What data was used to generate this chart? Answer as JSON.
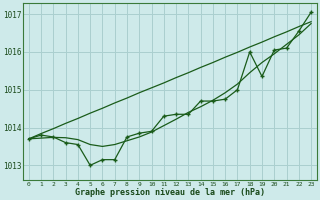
{
  "title": "Graphe pression niveau de la mer (hPa)",
  "background_color": "#ceeaea",
  "grid_color": "#aacfcf",
  "line_color": "#1a5c1a",
  "xlim": [
    -0.5,
    23.5
  ],
  "ylim": [
    1012.6,
    1017.3
  ],
  "yticks": [
    1013,
    1014,
    1015,
    1016,
    1017
  ],
  "xticks": [
    0,
    1,
    2,
    3,
    4,
    5,
    6,
    7,
    8,
    9,
    10,
    11,
    12,
    13,
    14,
    15,
    16,
    17,
    18,
    19,
    20,
    21,
    22,
    23
  ],
  "hours": [
    0,
    1,
    2,
    3,
    4,
    5,
    6,
    7,
    8,
    9,
    10,
    11,
    12,
    13,
    14,
    15,
    16,
    17,
    18,
    19,
    20,
    21,
    22,
    23
  ],
  "pressure_main": [
    1013.7,
    1013.8,
    1013.75,
    1013.6,
    1013.55,
    1013.0,
    1013.15,
    1013.15,
    1013.75,
    1013.85,
    1013.9,
    1014.3,
    1014.35,
    1014.35,
    1014.7,
    1014.7,
    1014.75,
    1015.0,
    1016.0,
    1015.35,
    1016.05,
    1016.1,
    1016.55,
    1017.05
  ],
  "pressure_straight": [
    1013.7,
    1013.84,
    1013.97,
    1014.11,
    1014.24,
    1014.38,
    1014.51,
    1014.65,
    1014.78,
    1014.92,
    1015.05,
    1015.18,
    1015.32,
    1015.45,
    1015.59,
    1015.72,
    1015.86,
    1015.99,
    1016.13,
    1016.26,
    1016.4,
    1016.53,
    1016.67,
    1016.8
  ],
  "pressure_smooth": [
    1013.7,
    1013.72,
    1013.74,
    1013.73,
    1013.68,
    1013.55,
    1013.5,
    1013.55,
    1013.65,
    1013.75,
    1013.88,
    1014.05,
    1014.22,
    1014.4,
    1014.55,
    1014.72,
    1014.92,
    1015.15,
    1015.45,
    1015.72,
    1015.95,
    1016.2,
    1016.45,
    1016.75
  ]
}
